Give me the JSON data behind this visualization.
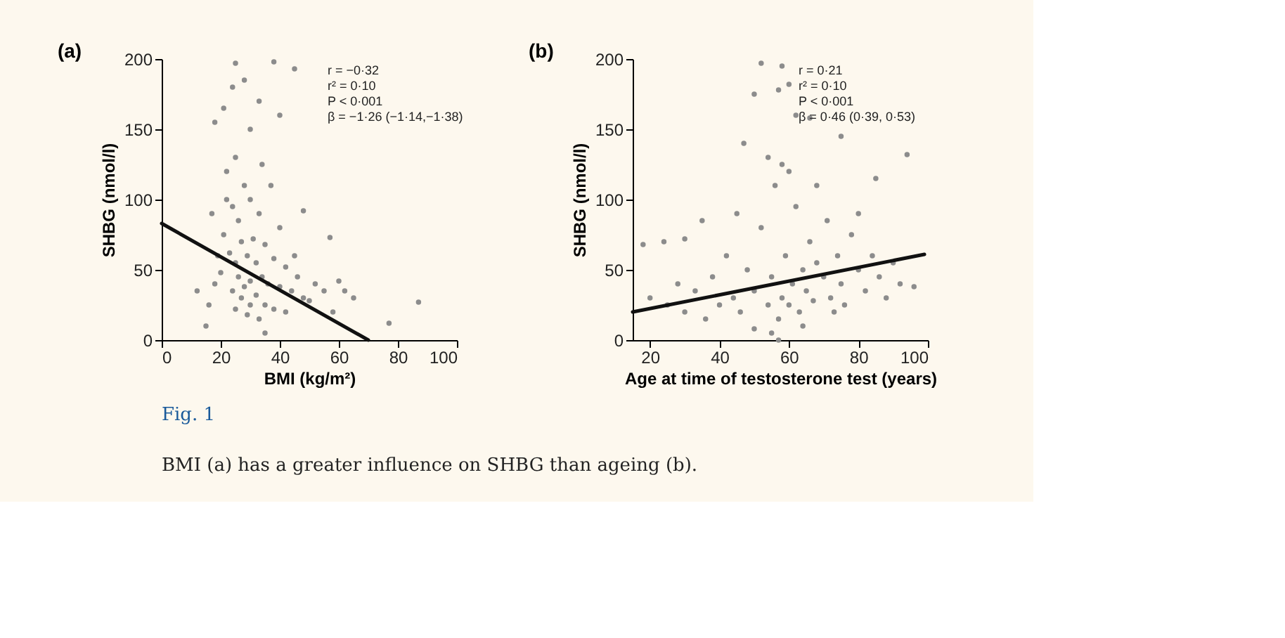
{
  "chart_data": [
    {
      "type": "scatter",
      "title": "(a)",
      "xlabel": "BMI (kg/m²)",
      "ylabel": "SHBG (nmol/l)",
      "xlim": [
        0,
        100
      ],
      "ylim": [
        0,
        200
      ],
      "xticks": [
        0,
        20,
        40,
        60,
        80,
        100
      ],
      "yticks": [
        0,
        50,
        100,
        150,
        200
      ],
      "marker": "circle",
      "annotations": [
        "r = −0·32",
        "r² = 0·10",
        "P < 0·001",
        "β = −1·26 (−1·14,−1·38)",
        "Fig. 1",
        "BMI (a) has a greater influence on SHBG than ageing (b)."
      ],
      "series": [
        {
          "color": "#8c8c8c",
          "x": [
            22,
            25,
            28,
            24,
            30,
            26,
            33,
            21,
            27,
            31,
            35,
            23,
            29,
            25,
            32,
            38,
            42,
            20,
            26,
            30,
            34,
            28,
            36,
            40,
            24,
            32,
            27,
            44,
            30,
            35,
            25,
            38,
            29,
            33,
            42,
            48,
            50,
            46,
            52,
            55,
            58,
            60,
            62,
            65,
            18,
            16,
            12,
            15,
            19,
            17,
            45,
            40,
            37,
            34,
            21,
            24,
            28,
            33,
            40,
            45,
            38,
            25,
            30,
            77,
            87,
            57,
            48,
            18,
            22,
            35
          ],
          "values": [
            120,
            130,
            110,
            95,
            100,
            85,
            90,
            75,
            70,
            72,
            68,
            62,
            60,
            55,
            55,
            58,
            52,
            48,
            45,
            42,
            45,
            38,
            40,
            38,
            35,
            32,
            30,
            35,
            25,
            25,
            22,
            22,
            18,
            15,
            20,
            30,
            28,
            45,
            40,
            35,
            20,
            42,
            35,
            30,
            40,
            25,
            35,
            10,
            60,
            90,
            60,
            80,
            110,
            125,
            165,
            180,
            185,
            170,
            160,
            193,
            198,
            197,
            150,
            12,
            27,
            73,
            92,
            155,
            100,
            5
          ]
        },
        {
          "type": "line",
          "marker": "none",
          "color": "#111111",
          "x": [
            0,
            70
          ],
          "values": [
            83,
            0
          ]
        }
      ]
    },
    {
      "type": "scatter",
      "title": "(b)",
      "xlabel": "Age at time of testosterone test (years)",
      "ylabel": "SHBG (nmol/l)",
      "xlim": [
        15,
        100
      ],
      "ylim": [
        0,
        200
      ],
      "xticks": [
        20,
        40,
        60,
        80,
        100
      ],
      "yticks": [
        0,
        50,
        100,
        150,
        200
      ],
      "marker": "circle",
      "annotations": [
        "r = 0·21",
        "r² = 0·10",
        "P < 0·001",
        "β = 0·46 (0·39, 0·53)"
      ],
      "series": [
        {
          "color": "#8c8c8c",
          "x": [
            20,
            25,
            28,
            30,
            33,
            36,
            38,
            40,
            42,
            44,
            46,
            48,
            50,
            52,
            54,
            55,
            56,
            57,
            58,
            59,
            60,
            61,
            62,
            63,
            64,
            65,
            66,
            67,
            68,
            70,
            71,
            72,
            74,
            75,
            76,
            78,
            80,
            82,
            84,
            86,
            88,
            90,
            92,
            96,
            54,
            58,
            60,
            50,
            52,
            57,
            60,
            62,
            58,
            66,
            75,
            85,
            94,
            35,
            24,
            30,
            18,
            47,
            55,
            57,
            45,
            68,
            80,
            73,
            64,
            50
          ],
          "values": [
            30,
            25,
            40,
            20,
            35,
            15,
            45,
            25,
            60,
            30,
            20,
            50,
            35,
            80,
            25,
            45,
            110,
            15,
            30,
            60,
            25,
            40,
            95,
            20,
            50,
            35,
            70,
            28,
            55,
            45,
            85,
            30,
            60,
            40,
            25,
            75,
            50,
            35,
            60,
            45,
            30,
            55,
            40,
            38,
            130,
            125,
            120,
            175,
            197,
            178,
            182,
            160,
            195,
            158,
            145,
            115,
            132,
            85,
            70,
            72,
            68,
            140,
            5,
            0,
            90,
            110,
            90,
            20,
            10,
            8
          ]
        },
        {
          "type": "line",
          "marker": "none",
          "color": "#111111",
          "x": [
            15,
            99
          ],
          "values": [
            20,
            61
          ]
        }
      ]
    }
  ]
}
